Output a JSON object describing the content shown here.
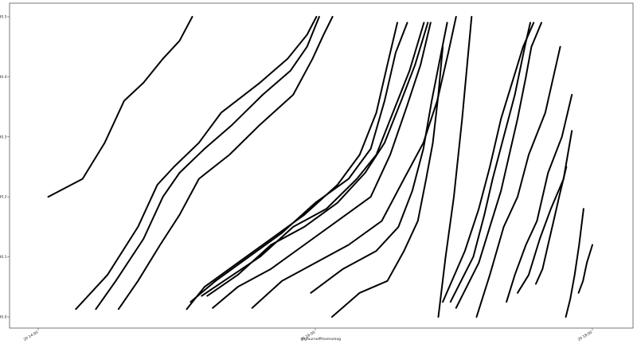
{
  "chart_data": {
    "type": "line",
    "title": "",
    "xlabel": "ingfournolffmxmxmag",
    "ylabel": "",
    "grid": false,
    "legend": "none",
    "line_color": "#000000",
    "xlim": [
      0,
      100
    ],
    "ylim": [
      180.0,
      180.5
    ],
    "x_ticks": [
      {
        "value": 0,
        "label": "20 14:00"
      },
      {
        "value": 50,
        "label": "20 16:00"
      },
      {
        "value": 100,
        "label": "20 18:00"
      }
    ],
    "y_ticks": [
      {
        "value": 180.0,
        "label": "180.0"
      },
      {
        "value": 180.1,
        "label": "180.1"
      },
      {
        "value": 180.2,
        "label": "180.2"
      },
      {
        "value": 180.3,
        "label": "180.3"
      },
      {
        "value": 180.4,
        "label": "180.4"
      },
      {
        "value": 180.5,
        "label": "180.5"
      }
    ],
    "series": [
      {
        "x": [
          1.8,
          8.0,
          12.0,
          15.5,
          19.0,
          22.5,
          25.5,
          27.8
        ],
        "y": [
          180.2,
          180.23,
          180.29,
          180.36,
          180.39,
          180.43,
          180.46,
          180.5
        ]
      },
      {
        "x": [
          6.8,
          12.5,
          18.0,
          21.5,
          24.5,
          29.0,
          33.0,
          40.0,
          45.0,
          48.5,
          50.2
        ],
        "y": [
          180.013,
          180.07,
          180.15,
          180.22,
          180.25,
          180.29,
          180.34,
          180.39,
          180.43,
          180.47,
          180.5
        ]
      },
      {
        "x": [
          10.4,
          14.0,
          19.0,
          22.5,
          25.5,
          30.0,
          35.0,
          40.5,
          45.5,
          48.5,
          50.7
        ],
        "y": [
          180.013,
          180.06,
          180.13,
          180.2,
          180.24,
          180.28,
          180.32,
          180.37,
          180.41,
          180.45,
          180.5
        ]
      },
      {
        "x": [
          14.5,
          18.0,
          22.0,
          25.5,
          29.0,
          34.5,
          40.0,
          46.0,
          49.5,
          51.5,
          53.1
        ],
        "y": [
          180.013,
          180.06,
          180.12,
          180.17,
          180.23,
          180.27,
          180.32,
          180.37,
          180.43,
          180.47,
          180.5
        ]
      },
      {
        "x": [
          26.8,
          30.0,
          36.0,
          42.0,
          48.0,
          54.0,
          58.0,
          61.0,
          63.0,
          64.8
        ],
        "y": [
          180.013,
          180.05,
          180.09,
          180.13,
          180.17,
          180.22,
          180.27,
          180.34,
          180.42,
          180.49
        ]
      },
      {
        "x": [
          27.5,
          32.0,
          38.0,
          44.0,
          50.0,
          56.0,
          60.0,
          62.5,
          64.5,
          66.6
        ],
        "y": [
          180.025,
          180.06,
          180.1,
          180.14,
          180.19,
          180.23,
          180.28,
          180.36,
          180.44,
          180.49
        ]
      },
      {
        "x": [
          29.5,
          33.5,
          40.0,
          46.0,
          52.0,
          57.5,
          61.0,
          64.0,
          67.0,
          69.6
        ],
        "y": [
          180.035,
          180.06,
          180.1,
          180.15,
          180.18,
          180.23,
          180.27,
          180.34,
          180.41,
          180.49
        ]
      },
      {
        "x": [
          30.5,
          36.0,
          42.0,
          48.0,
          54.0,
          59.0,
          62.5,
          65.5,
          68.0,
          70.3
        ],
        "y": [
          180.035,
          180.07,
          180.12,
          180.15,
          180.19,
          180.24,
          180.29,
          180.36,
          180.42,
          180.49
        ]
      },
      {
        "x": [
          31.5,
          36.0,
          42.0,
          48.0,
          54.0,
          60.0,
          63.5,
          66.5,
          69.0,
          70.8
        ],
        "y": [
          180.015,
          180.05,
          180.08,
          180.12,
          180.16,
          180.2,
          180.27,
          180.35,
          180.42,
          180.49
        ]
      },
      {
        "x": [
          38.6,
          44.0,
          50.0,
          56.0,
          62.0,
          66.0,
          69.5,
          72.0,
          74.0,
          75.4
        ],
        "y": [
          180.015,
          180.06,
          180.09,
          180.12,
          180.16,
          180.23,
          180.29,
          180.36,
          180.44,
          180.5
        ]
      },
      {
        "x": [
          49.2,
          55.0,
          61.0,
          65.0,
          67.5,
          69.5,
          71.0,
          72.5,
          73.8
        ],
        "y": [
          180.04,
          180.08,
          180.11,
          180.15,
          180.21,
          180.28,
          180.36,
          180.43,
          180.49
        ]
      },
      {
        "x": [
          53.0,
          58.0,
          63.0,
          66.0,
          68.5,
          70.0,
          71.2,
          72.2,
          73.0
        ],
        "y": [
          180.0,
          180.04,
          180.06,
          180.11,
          180.16,
          180.23,
          180.29,
          180.37,
          180.45
        ]
      },
      {
        "x": [
          72.2,
          73.5,
          75.0,
          76.5,
          78.2
        ],
        "y": [
          180.0,
          180.1,
          180.2,
          180.33,
          180.5
        ]
      },
      {
        "x": [
          73.0,
          77.0,
          79.5,
          81.5,
          83.5,
          85.5,
          87.5,
          89.4
        ],
        "y": [
          180.025,
          180.11,
          180.18,
          180.25,
          180.33,
          180.39,
          180.45,
          180.49
        ]
      },
      {
        "x": [
          74.4,
          78.5,
          80.5,
          82.0,
          84.0,
          86.0,
          87.8,
          88.8
        ],
        "y": [
          180.025,
          180.1,
          180.17,
          180.23,
          180.3,
          180.37,
          180.45,
          180.49
        ]
      },
      {
        "x": [
          75.4,
          79.5,
          81.5,
          83.5,
          85.0,
          86.5,
          88.0,
          89.0,
          90.8
        ],
        "y": [
          180.015,
          180.09,
          180.15,
          180.21,
          180.27,
          180.33,
          180.4,
          180.45,
          180.49
        ]
      },
      {
        "x": [
          79.1,
          81.5,
          84.0,
          86.5,
          88.5,
          91.5,
          94.2
        ],
        "y": [
          180.0,
          180.07,
          180.15,
          180.2,
          180.27,
          180.34,
          180.45
        ]
      },
      {
        "x": [
          84.5,
          86.0,
          88.0,
          90.0,
          92.0,
          94.5,
          96.3
        ],
        "y": [
          180.025,
          180.07,
          180.12,
          180.16,
          180.24,
          180.3,
          180.37
        ]
      },
      {
        "x": [
          86.5,
          88.5,
          90.5,
          92.5,
          94.8,
          96.3
        ],
        "y": [
          180.04,
          180.07,
          180.13,
          180.18,
          180.23,
          180.31
        ]
      },
      {
        "x": [
          89.8,
          91.0,
          92.0,
          93.0,
          94.0,
          95.3
        ],
        "y": [
          180.055,
          180.08,
          180.12,
          180.16,
          180.2,
          180.25
        ]
      },
      {
        "x": [
          95.2,
          96.0,
          96.8,
          97.6,
          98.4
        ],
        "y": [
          180.0,
          180.03,
          180.07,
          180.12,
          180.18
        ]
      },
      {
        "x": [
          97.5,
          98.3,
          99.0,
          100.0
        ],
        "y": [
          180.04,
          180.06,
          180.09,
          180.12
        ]
      }
    ]
  }
}
